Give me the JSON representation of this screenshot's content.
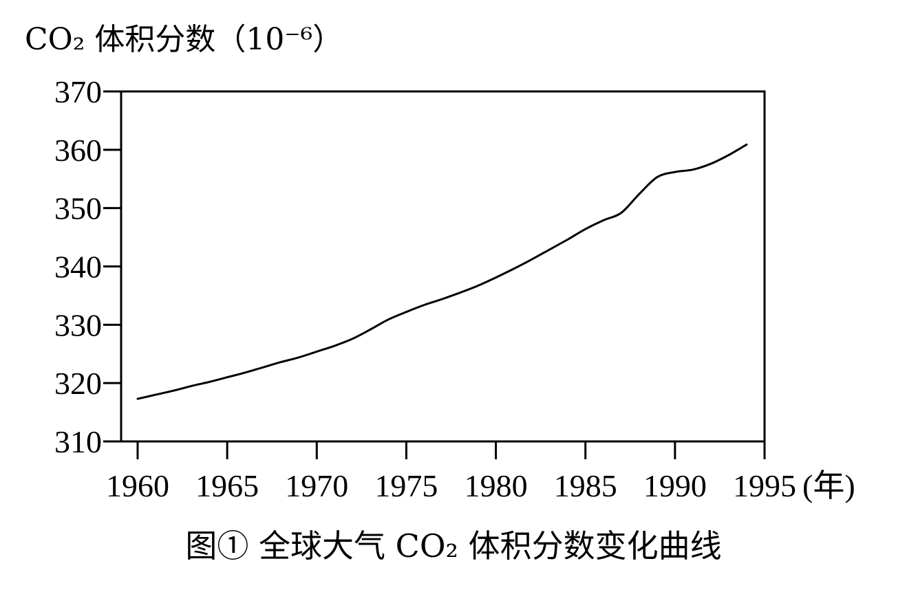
{
  "chart_data": {
    "type": "line",
    "title": "图① 全球大气 CO₂ 体积分数变化曲线",
    "ylabel": "CO₂ 体积分数（10⁻⁶）",
    "xunit": "(年)",
    "ylim": [
      310,
      370
    ],
    "xlim": [
      1960,
      1995
    ],
    "yticks": [
      "310",
      "320",
      "330",
      "340",
      "350",
      "360",
      "370"
    ],
    "xticks": [
      "1960",
      "1965",
      "1970",
      "1975",
      "1980",
      "1985",
      "1990",
      "1995"
    ],
    "grid": false,
    "series": [
      {
        "x": [
          1960,
          1961,
          1962,
          1963,
          1964,
          1965,
          1966,
          1967,
          1968,
          1969,
          1970,
          1971,
          1972,
          1973,
          1974,
          1975,
          1976,
          1977,
          1978,
          1979,
          1980,
          1981,
          1982,
          1983,
          1984,
          1985,
          1986,
          1987,
          1988,
          1989,
          1990,
          1991,
          1992,
          1993,
          1994
        ],
        "values": [
          317.3,
          318.0,
          318.7,
          319.5,
          320.2,
          321.0,
          321.8,
          322.7,
          323.6,
          324.4,
          325.4,
          326.4,
          327.6,
          329.2,
          330.9,
          332.2,
          333.4,
          334.4,
          335.5,
          336.7,
          338.1,
          339.6,
          341.2,
          342.9,
          344.6,
          346.4,
          347.9,
          349.2,
          352.4,
          355.3,
          356.2,
          356.6,
          357.6,
          359.1,
          360.9
        ]
      }
    ]
  }
}
